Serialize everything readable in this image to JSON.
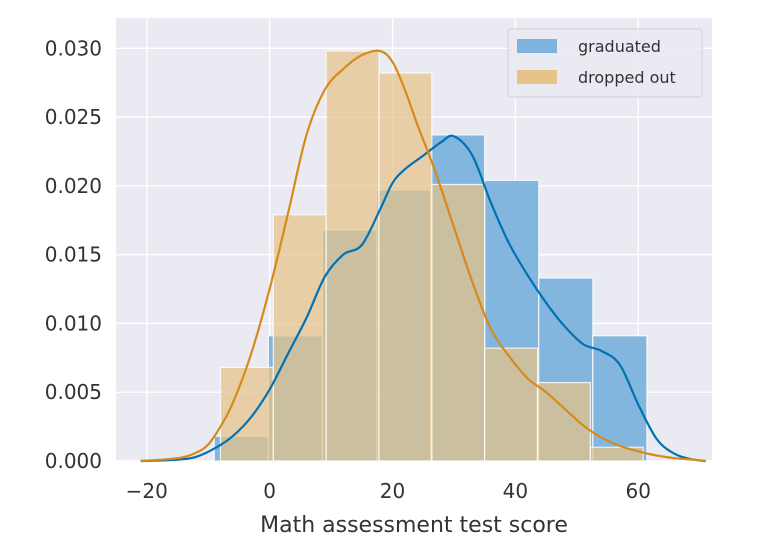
{
  "chart_data": {
    "type": "histogram",
    "title": "",
    "xlabel": "Math assessment test score",
    "ylabel": "",
    "xlim": [
      -25,
      72
    ],
    "ylim": [
      0,
      0.0322
    ],
    "xticks": [
      -20,
      0,
      20,
      40,
      60
    ],
    "xtick_labels": [
      "−20",
      "0",
      "20",
      "40",
      "60"
    ],
    "yticks": [
      0,
      0.005,
      0.01,
      0.015,
      0.02,
      0.025,
      0.03
    ],
    "ytick_labels": [
      "0.000",
      "0.005",
      "0.010",
      "0.015",
      "0.020",
      "0.025",
      "0.030"
    ],
    "grid": true,
    "legend_position": "top-right",
    "series": [
      {
        "name": "graduated",
        "color": "#0072B2",
        "bar_color": "#7DB3DC",
        "bins": [
          {
            "x0": -9.0,
            "x1": -0.2,
            "value": 0.0018
          },
          {
            "x0": -0.2,
            "x1": 8.6,
            "value": 0.0091
          },
          {
            "x0": 8.6,
            "x1": 17.4,
            "value": 0.0168
          },
          {
            "x0": 17.4,
            "x1": 26.2,
            "value": 0.0197
          },
          {
            "x0": 26.2,
            "x1": 35.0,
            "value": 0.0237
          },
          {
            "x0": 35.0,
            "x1": 43.8,
            "value": 0.0204
          },
          {
            "x0": 43.8,
            "x1": 52.6,
            "value": 0.0133
          },
          {
            "x0": 52.6,
            "x1": 61.4,
            "value": 0.0091
          }
        ],
        "kde": {
          "x": [
            -21,
            -15,
            -12,
            -9,
            -6,
            -3,
            0,
            3,
            6,
            9,
            12,
            15,
            18,
            20,
            22,
            25,
            28,
            30,
            33,
            36,
            39,
            42,
            45,
            48,
            51,
            54,
            57,
            60,
            63,
            66,
            69,
            71
          ],
          "y": [
            0,
            0.0001,
            0.0003,
            0.0009,
            0.0018,
            0.0032,
            0.0052,
            0.0078,
            0.0104,
            0.0134,
            0.015,
            0.0157,
            0.0183,
            0.0202,
            0.0212,
            0.0222,
            0.0232,
            0.0236,
            0.0222,
            0.0188,
            0.0158,
            0.0135,
            0.0115,
            0.0098,
            0.0085,
            0.008,
            0.007,
            0.0041,
            0.0016,
            0.0005,
            0.0001,
            0
          ]
        }
      },
      {
        "name": "dropped out",
        "color": "#D68A1C",
        "bar_color": "#E6C488",
        "bins": [
          {
            "x0": -8.0,
            "x1": 0.6,
            "value": 0.0068
          },
          {
            "x0": 0.6,
            "x1": 9.2,
            "value": 0.0179
          },
          {
            "x0": 9.2,
            "x1": 17.8,
            "value": 0.0298
          },
          {
            "x0": 17.8,
            "x1": 26.4,
            "value": 0.0282
          },
          {
            "x0": 26.4,
            "x1": 35.0,
            "value": 0.0201
          },
          {
            "x0": 35.0,
            "x1": 43.6,
            "value": 0.0082
          },
          {
            "x0": 43.6,
            "x1": 52.2,
            "value": 0.0057
          },
          {
            "x0": 52.2,
            "x1": 60.8,
            "value": 0.001
          }
        ],
        "kde": {
          "x": [
            -21,
            -15,
            -12,
            -10,
            -8,
            -6,
            -3,
            0,
            3,
            6,
            9,
            12,
            15,
            18,
            20,
            22,
            24,
            27,
            30,
            33,
            36,
            39,
            42,
            45,
            48,
            51,
            54,
            57,
            60,
            63,
            66,
            69,
            71
          ],
          "y": [
            0,
            0.0002,
            0.0006,
            0.0012,
            0.0025,
            0.0042,
            0.0078,
            0.0125,
            0.018,
            0.0237,
            0.027,
            0.0285,
            0.0295,
            0.0298,
            0.029,
            0.027,
            0.0245,
            0.021,
            0.017,
            0.013,
            0.0096,
            0.0076,
            0.006,
            0.005,
            0.0038,
            0.0026,
            0.0017,
            0.0011,
            0.0007,
            0.0004,
            0.0002,
            0.0001,
            0
          ]
        }
      }
    ]
  },
  "colors": {
    "plot_background": "#EAEAF2",
    "grid": "#FFFFFF",
    "overlap": "#A9A97E"
  }
}
